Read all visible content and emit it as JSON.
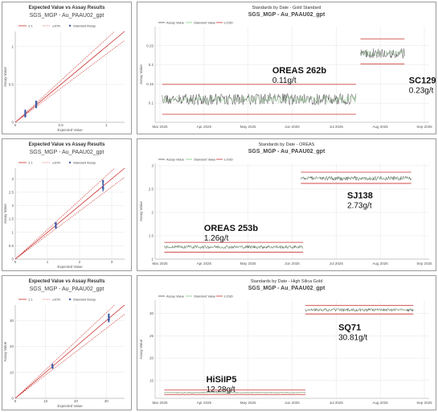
{
  "colors": {
    "series_grey": "#555555",
    "series_green": "#7fc97f",
    "limit_red": "#c9302c",
    "one_to_one": "#c9302c",
    "assay_blue": "#3a5ea8",
    "grid": "#e4e4e4"
  },
  "chart_data": [
    {
      "type": "scatter",
      "title": "Expected Value vs Assay Results",
      "subtitle": "SGS_MGP - Au_PAAU02_gpt",
      "xlabel": "Expected Value",
      "ylabel": "Assay Value",
      "xlim": [
        0,
        1.2
      ],
      "ylim": [
        0,
        1.2
      ],
      "xticks": [
        {
          "v": 0,
          "label": "0"
        },
        {
          "v": 0.5,
          "label": "0.5"
        },
        {
          "v": 1,
          "label": "1"
        }
      ],
      "yticks": [
        {
          "v": 0,
          "label": "0"
        },
        {
          "v": 0.5,
          "label": "0.5"
        },
        {
          "v": 1,
          "label": "1"
        }
      ],
      "legend": [
        "1:1",
        "±10%",
        "Standard Assay"
      ],
      "clusters": [
        {
          "x": 0.11,
          "y_min": 0.07,
          "y_max": 0.16
        },
        {
          "x": 0.23,
          "y_min": 0.19,
          "y_max": 0.28
        }
      ]
    },
    {
      "type": "line",
      "title": "Standards by Date - Gold Standard",
      "subtitle": "SGS_MGP - Au_PAAU02_gpt",
      "ylabel": "Assay Value",
      "ylim": [
        0.05,
        0.3
      ],
      "yticks": [
        {
          "v": 0.1,
          "label": "0.1"
        },
        {
          "v": 0.15,
          "label": "0.15"
        },
        {
          "v": 0.2,
          "label": "0.2"
        },
        {
          "v": 0.25,
          "label": "0.25"
        }
      ],
      "xticks": [
        {
          "v": 0,
          "label": "Mar 2025"
        },
        {
          "v": 1,
          "label": "Apr 2025"
        },
        {
          "v": 2,
          "label": "May 2025"
        },
        {
          "v": 3,
          "label": "Jun 2025"
        },
        {
          "v": 4,
          "label": "Jul 2025"
        },
        {
          "v": 5,
          "label": "Aug 2025"
        },
        {
          "v": 6,
          "label": "Sep 2025"
        }
      ],
      "legend": [
        "Assay Value",
        "Standard Value",
        "LOSD"
      ],
      "segments": [
        {
          "x_start": 0.05,
          "x_end": 4.45,
          "center": 0.11,
          "lower": 0.071,
          "upper": 0.149,
          "spread": 0.015,
          "label": "OREAS 262b",
          "value_label": "0.11g/t",
          "label_x": 2.55,
          "label_y": 0.178
        },
        {
          "x_start": 4.55,
          "x_end": 5.55,
          "center": 0.23,
          "lower": 0.202,
          "upper": 0.268,
          "spread": 0.013,
          "label": "SC129",
          "value_label": "0.23g/t",
          "label_x": 5.65,
          "label_y": 0.152
        }
      ]
    },
    {
      "type": "scatter",
      "title": "Expected Value vs Assay Results",
      "subtitle": "SGS_MGP - Au_PAAU02_gpt",
      "xlabel": "Expected Value",
      "ylabel": "Assay Value",
      "xlim": [
        0,
        3.4
      ],
      "ylim": [
        0,
        3.4
      ],
      "xticks": [
        {
          "v": 0,
          "label": "0"
        },
        {
          "v": 1,
          "label": "1"
        },
        {
          "v": 2,
          "label": "2"
        },
        {
          "v": 3,
          "label": "3"
        }
      ],
      "yticks": [
        {
          "v": 0,
          "label": "0"
        },
        {
          "v": 0.5,
          "label": "0.5"
        },
        {
          "v": 1,
          "label": "1"
        },
        {
          "v": 1.5,
          "label": "1.5"
        },
        {
          "v": 2,
          "label": "2"
        },
        {
          "v": 2.5,
          "label": "2.5"
        },
        {
          "v": 3,
          "label": "3"
        }
      ],
      "legend": [
        "1:1",
        "±10%",
        "Standard Assay"
      ],
      "clusters": [
        {
          "x": 1.26,
          "y_min": 1.15,
          "y_max": 1.4
        },
        {
          "x": 2.73,
          "y_min": 2.55,
          "y_max": 2.95
        }
      ]
    },
    {
      "type": "line",
      "title": "Standards by Date - OREAS",
      "subtitle": "SGS_MGP - Au_PAAU02_gpt",
      "ylabel": "Assay Value",
      "ylim": [
        1,
        3.05
      ],
      "yticks": [
        {
          "v": 1,
          "label": "1"
        },
        {
          "v": 1.5,
          "label": "1.5"
        },
        {
          "v": 2,
          "label": "2"
        },
        {
          "v": 2.5,
          "label": "2.5"
        },
        {
          "v": 3,
          "label": "3"
        }
      ],
      "xticks": [
        {
          "v": 0,
          "label": "Mar 2025"
        },
        {
          "v": 1,
          "label": "Apr 2025"
        },
        {
          "v": 2,
          "label": "May 2025"
        },
        {
          "v": 3,
          "label": "Jun 2025"
        },
        {
          "v": 4,
          "label": "Jul 2025"
        },
        {
          "v": 5,
          "label": "Aug 2025"
        },
        {
          "v": 6,
          "label": "Sep 2025"
        }
      ],
      "legend": [
        "Assay Value",
        "Standard Value",
        "LOSD"
      ],
      "segments": [
        {
          "x_start": 0.1,
          "x_end": 3.25,
          "center": 1.26,
          "lower": 1.15,
          "upper": 1.36,
          "spread": 0.035,
          "label": "OREAS 253b",
          "value_label": "1.26g/t",
          "label_x": 1.0,
          "label_y": 1.6
        },
        {
          "x_start": 3.2,
          "x_end": 5.7,
          "center": 2.73,
          "lower": 2.62,
          "upper": 2.86,
          "spread": 0.045,
          "label": "SJ138",
          "value_label": "2.73g/t",
          "label_x": 4.25,
          "label_y": 2.3
        }
      ]
    },
    {
      "type": "scatter",
      "title": "Expected Value vs Assay Results",
      "subtitle": "SGS_MGP - Au_PAAU02_gpt",
      "xlabel": "Expected Value",
      "ylabel": "Assay Value",
      "xlim": [
        0,
        36
      ],
      "ylim": [
        0,
        36
      ],
      "xticks": [
        {
          "v": 0,
          "label": "0"
        },
        {
          "v": 10,
          "label": "10"
        },
        {
          "v": 20,
          "label": "20"
        },
        {
          "v": 30,
          "label": "30"
        }
      ],
      "yticks": [
        {
          "v": 0,
          "label": "0"
        },
        {
          "v": 10,
          "label": "10"
        },
        {
          "v": 20,
          "label": "20"
        },
        {
          "v": 30,
          "label": "30"
        }
      ],
      "legend": [
        "1:1",
        "±10%",
        "Standard Assay"
      ],
      "clusters": [
        {
          "x": 12.28,
          "y_min": 11.5,
          "y_max": 13.2
        },
        {
          "x": 30.81,
          "y_min": 29.2,
          "y_max": 32.5
        }
      ]
    },
    {
      "type": "line",
      "title": "Standards by Date - High Silica Gold",
      "subtitle": "SGS_MGP - Au_PAAU02_gpt",
      "ylabel": "Assay Value",
      "ylim": [
        11,
        33
      ],
      "yticks": [
        {
          "v": 15,
          "label": "15"
        },
        {
          "v": 20,
          "label": "20"
        },
        {
          "v": 25,
          "label": "25"
        },
        {
          "v": 30,
          "label": "30"
        }
      ],
      "xticks": [
        {
          "v": 0,
          "label": "Mar 2025"
        },
        {
          "v": 1,
          "label": "Apr 2025"
        },
        {
          "v": 2,
          "label": "May 2025"
        },
        {
          "v": 3,
          "label": "Jun 2025"
        },
        {
          "v": 4,
          "label": "Jul 2025"
        },
        {
          "v": 5,
          "label": "Aug 2025"
        },
        {
          "v": 6,
          "label": "Sep 2025"
        }
      ],
      "legend": [
        "Assay Value",
        "Standard Value",
        "LOSD"
      ],
      "segments": [
        {
          "x_start": 0.1,
          "x_end": 3.3,
          "center": 12.28,
          "lower": 11.85,
          "upper": 12.85,
          "spread": 0.12,
          "label": "HiSiIP5",
          "value_label": "12.28g/t",
          "label_x": 1.05,
          "label_y": 14.6
        },
        {
          "x_start": 3.3,
          "x_end": 5.75,
          "center": 30.81,
          "lower": 29.9,
          "upper": 31.8,
          "spread": 0.35,
          "label": "SQ71",
          "value_label": "30.81g/t",
          "label_x": 4.05,
          "label_y": 26.2
        }
      ]
    }
  ]
}
